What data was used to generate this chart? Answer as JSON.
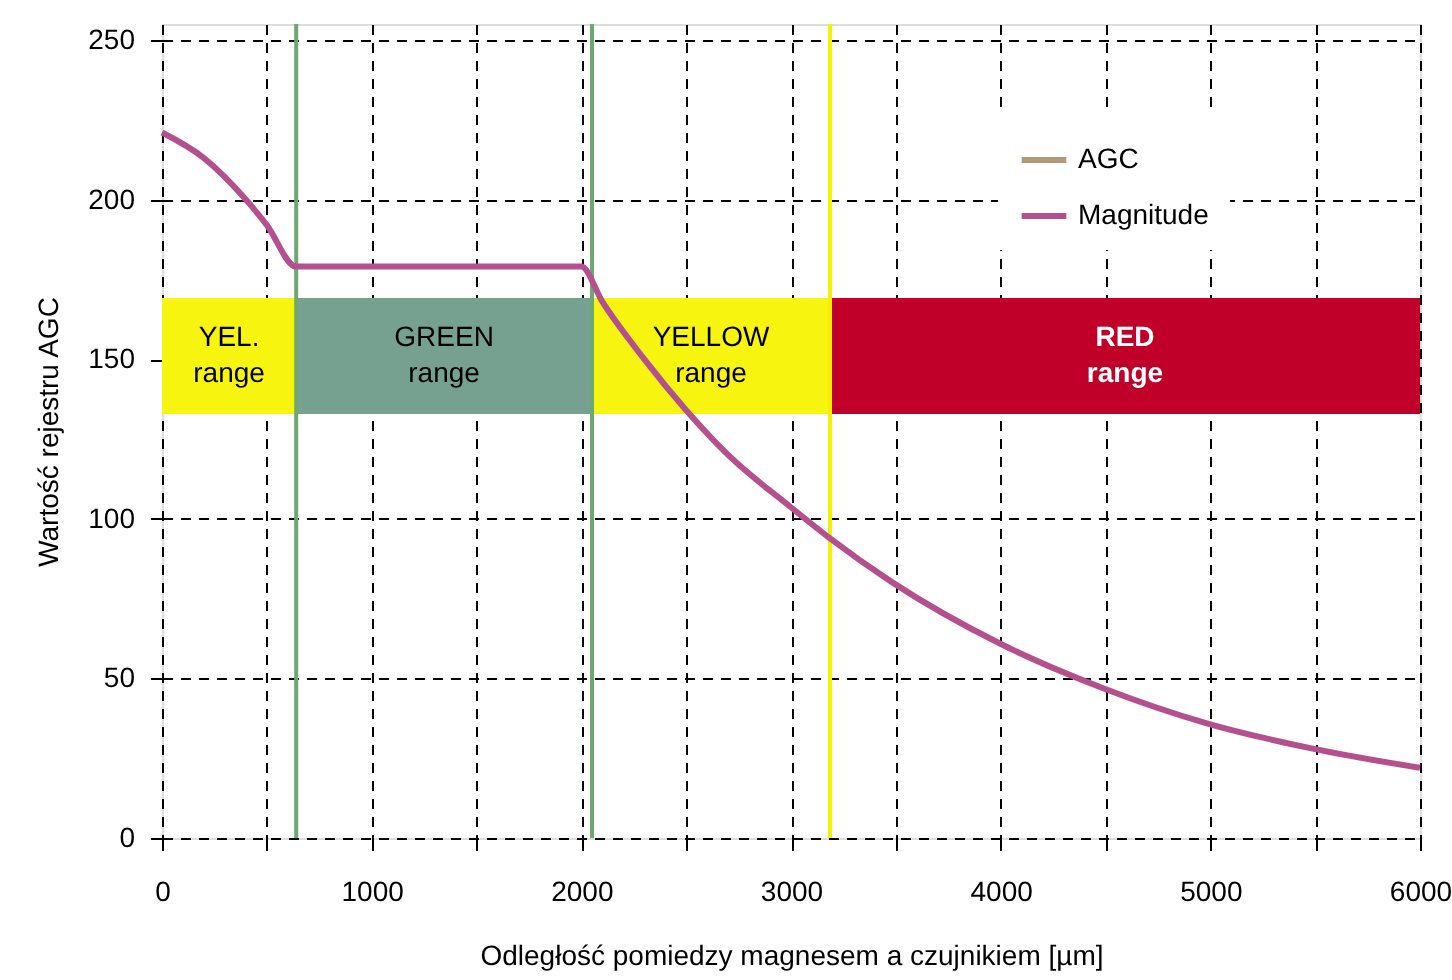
{
  "chart_data": {
    "type": "line",
    "xlabel": "Odległość pomiedzy magnesem a czujnikiem [µm]",
    "ylabel": "Wartość rejestru AGC",
    "xlim": [
      0,
      6000
    ],
    "ylim": [
      0,
      255
    ],
    "xticks": [
      0,
      {
        "value": 500,
        "label": null
      },
      1000,
      {
        "value": 1500,
        "label": null
      },
      2000,
      {
        "value": 2500,
        "label": null
      },
      3000,
      {
        "value": 3500,
        "label": null
      },
      4000,
      {
        "value": 4500,
        "label": null
      },
      5000,
      {
        "value": 5500,
        "label": null
      },
      6000
    ],
    "yticks": [
      0,
      50,
      100,
      150,
      200,
      250
    ],
    "grid": true,
    "legend": "top right",
    "line_style": "solid",
    "marker": "none",
    "series": [
      {
        "name": "AGC",
        "color": "#b09a78"
      },
      {
        "name": "Magnitude",
        "color": "#b5508f",
        "x": [
          0,
          200,
          400,
          500,
          640,
          2000,
          2100,
          2300,
          2500,
          2700,
          2992,
          3183,
          3485,
          3994,
          4486,
          4979,
          5488,
          6000
        ],
        "values": [
          221,
          213,
          200,
          192,
          179,
          179,
          168,
          150,
          134,
          120,
          104,
          94,
          80,
          61,
          47,
          36,
          28,
          22
        ]
      }
    ],
    "bands": [
      {
        "axis": "x",
        "from": 0,
        "to": 640,
        "label": "YEL.\nrange",
        "color": "#f7f50f"
      },
      {
        "axis": "x",
        "from": 640,
        "to": 2051,
        "label": "GREEN\nrange",
        "color": "#76a191"
      },
      {
        "axis": "x",
        "from": 2051,
        "to": 3186,
        "label": "YELLOW\nrange",
        "color": "#f7f50f"
      },
      {
        "axis": "x",
        "from": 3186,
        "to": 6000,
        "label": "RED\nrange",
        "color": "#c00028"
      }
    ],
    "ref_lines": [
      {
        "axis": "x",
        "value": 640,
        "color": "#6fa86f"
      },
      {
        "axis": "x",
        "value": 2051,
        "color": "#6fa86f"
      },
      {
        "axis": "x",
        "value": 3186,
        "color": "#f2f200"
      }
    ]
  }
}
